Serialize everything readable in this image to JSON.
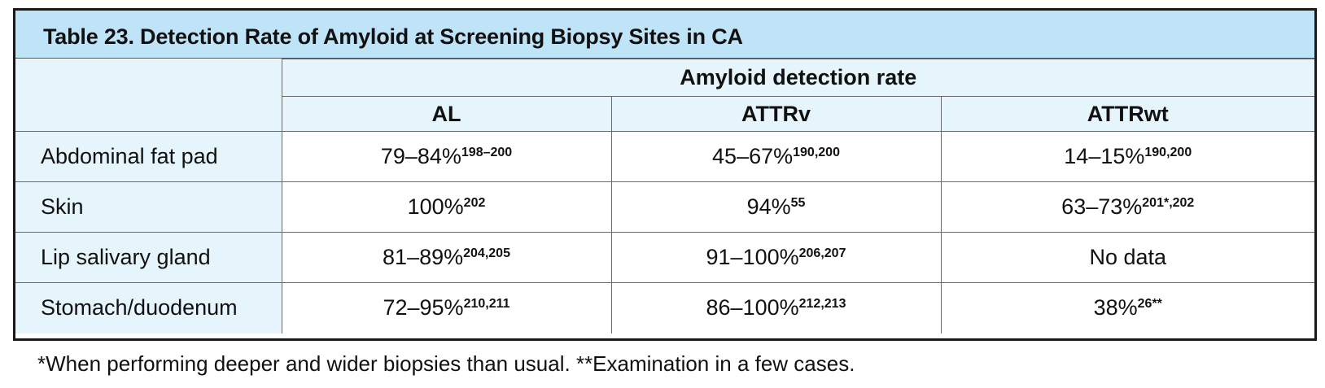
{
  "table": {
    "title": "Table 23.  Detection Rate of Amyloid at Screening Biopsy Sites in CA",
    "group_header": "Amyloid detection rate",
    "columns": [
      "AL",
      "ATTRv",
      "ATTRwt"
    ],
    "rows": [
      {
        "label": "Abdominal fat pad",
        "cells": [
          {
            "value": "79–84%",
            "ref": "198–200"
          },
          {
            "value": "45–67%",
            "ref": "190,200"
          },
          {
            "value": "14–15%",
            "ref": "190,200"
          }
        ]
      },
      {
        "label": "Skin",
        "cells": [
          {
            "value": "100%",
            "ref": "202"
          },
          {
            "value": "94%",
            "ref": "55"
          },
          {
            "value": "63–73%",
            "ref": "201*,202"
          }
        ]
      },
      {
        "label": "Lip salivary gland",
        "cells": [
          {
            "value": "81–89%",
            "ref": "204,205"
          },
          {
            "value": "91–100%",
            "ref": "206,207"
          },
          {
            "value": "No data",
            "ref": ""
          }
        ]
      },
      {
        "label": "Stomach/duodenum",
        "cells": [
          {
            "value": "72–95%",
            "ref": "210,211"
          },
          {
            "value": "86–100%",
            "ref": "212,213"
          },
          {
            "value": "38%",
            "ref": "26**"
          }
        ]
      }
    ],
    "footnote": "*When performing deeper and wider biopsies than usual. **Examination in a few cases."
  }
}
